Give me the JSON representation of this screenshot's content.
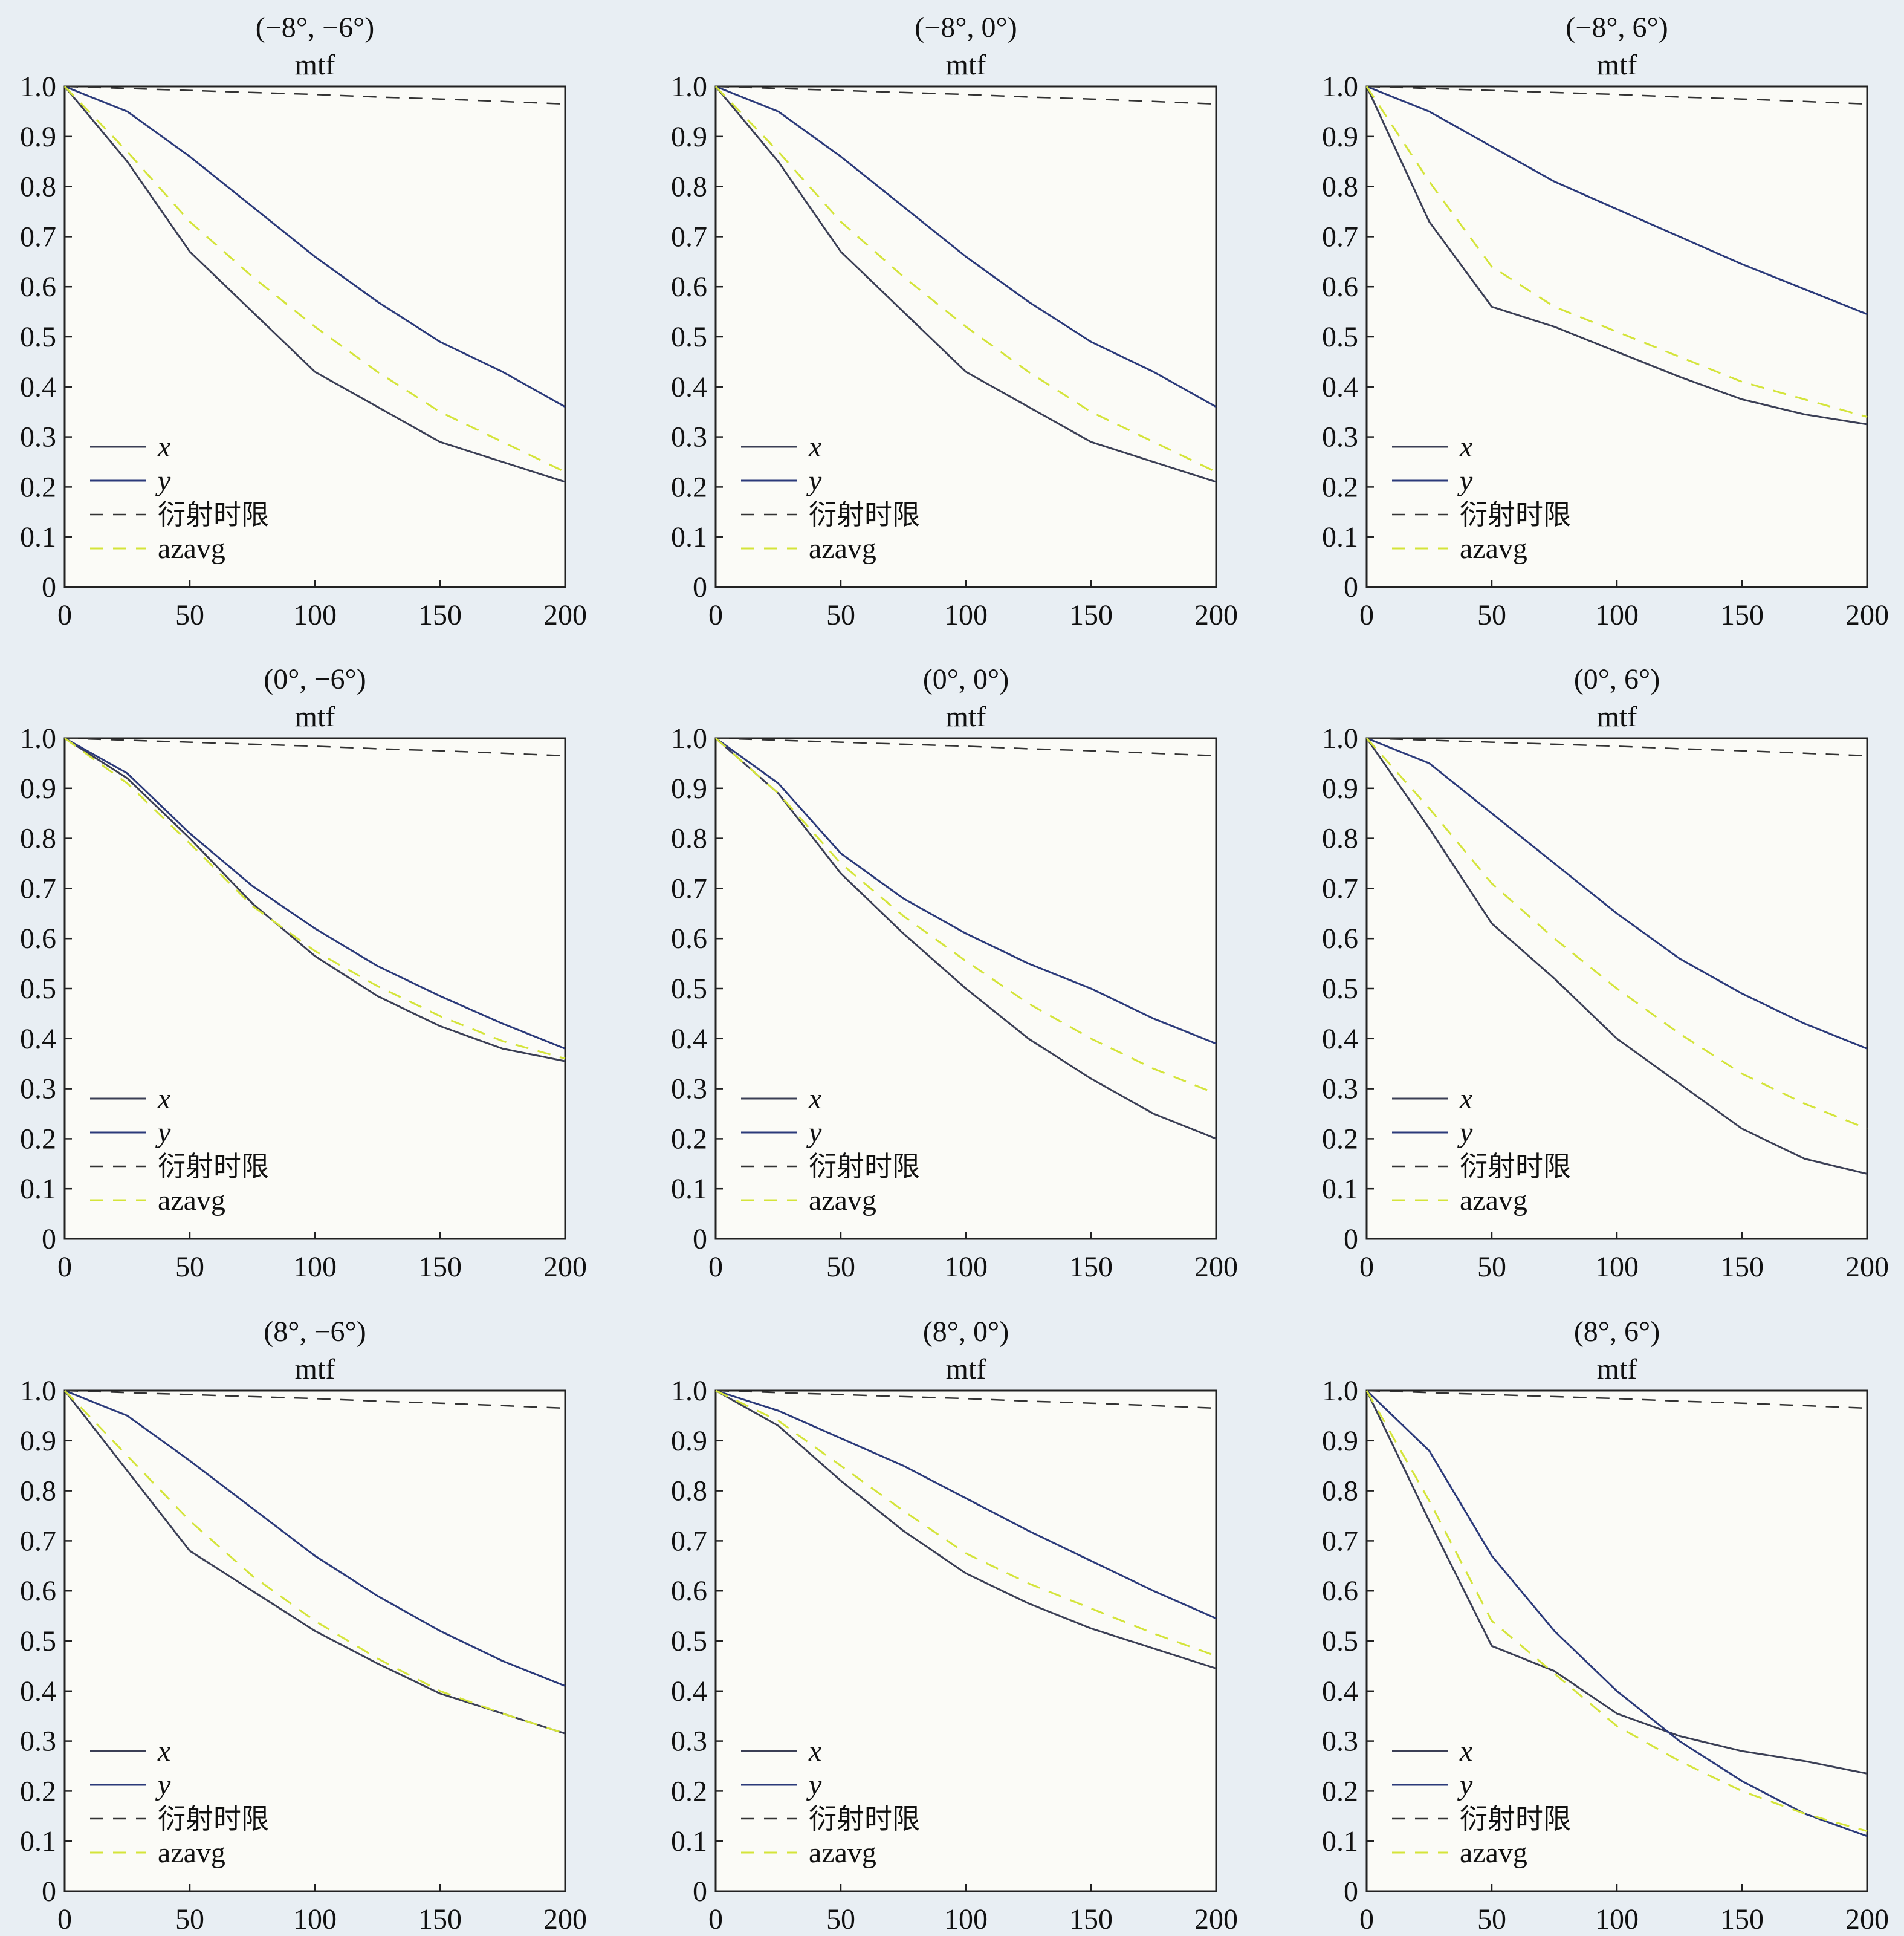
{
  "colors": {
    "background": "#e8eef3",
    "plot_background": "#fbfbf7",
    "axis": "#222222",
    "x_line": "#3b3f55",
    "y_line": "#2b3a7a",
    "diff_limit": "#333333",
    "azavg": "#d4e43a"
  },
  "chart_data": [
    {
      "type": "line",
      "title": "(−8°, −6°)",
      "subtitle": "mtf",
      "xlim": [
        0,
        200
      ],
      "ylim": [
        0,
        1.0
      ],
      "xticks": [
        "0",
        "50",
        "100",
        "150",
        "200"
      ],
      "yticks": [
        "0",
        "0.1",
        "0.2",
        "0.3",
        "0.4",
        "0.5",
        "0.6",
        "0.7",
        "0.8",
        "0.9",
        "1.0"
      ],
      "x": [
        0,
        25,
        50,
        75,
        100,
        125,
        150,
        175,
        200
      ],
      "series": [
        {
          "name": "x",
          "style": "solid",
          "values": [
            1.0,
            0.85,
            0.67,
            0.55,
            0.43,
            0.36,
            0.29,
            0.25,
            0.21
          ]
        },
        {
          "name": "y",
          "style": "solid",
          "values": [
            1.0,
            0.95,
            0.86,
            0.76,
            0.66,
            0.57,
            0.49,
            0.43,
            0.36
          ]
        },
        {
          "name": "衍射时限",
          "style": "dashed",
          "values": [
            1.0,
            0.996,
            0.992,
            0.988,
            0.984,
            0.979,
            0.975,
            0.97,
            0.965
          ]
        },
        {
          "name": "azavg",
          "style": "dashed",
          "values": [
            1.0,
            0.87,
            0.73,
            0.62,
            0.52,
            0.43,
            0.35,
            0.29,
            0.23
          ]
        }
      ],
      "legend": {
        "placement": "lower-left",
        "items": [
          "x",
          "y",
          "衍射时限",
          "azavg"
        ]
      }
    },
    {
      "type": "line",
      "title": "(−8°, 0°)",
      "subtitle": "mtf",
      "xlim": [
        0,
        200
      ],
      "ylim": [
        0,
        1.0
      ],
      "xticks": [
        "0",
        "50",
        "100",
        "150",
        "200"
      ],
      "yticks": [
        "0",
        "0.1",
        "0.2",
        "0.3",
        "0.4",
        "0.5",
        "0.6",
        "0.7",
        "0.8",
        "0.9",
        "1.0"
      ],
      "x": [
        0,
        25,
        50,
        75,
        100,
        125,
        150,
        175,
        200
      ],
      "series": [
        {
          "name": "x",
          "style": "solid",
          "values": [
            1.0,
            0.85,
            0.67,
            0.55,
            0.43,
            0.36,
            0.29,
            0.25,
            0.21
          ]
        },
        {
          "name": "y",
          "style": "solid",
          "values": [
            1.0,
            0.95,
            0.86,
            0.76,
            0.66,
            0.57,
            0.49,
            0.43,
            0.36
          ]
        },
        {
          "name": "衍射时限",
          "style": "dashed",
          "values": [
            1.0,
            0.996,
            0.992,
            0.988,
            0.984,
            0.979,
            0.975,
            0.97,
            0.965
          ]
        },
        {
          "name": "azavg",
          "style": "dashed",
          "values": [
            1.0,
            0.87,
            0.73,
            0.62,
            0.52,
            0.43,
            0.35,
            0.29,
            0.23
          ]
        }
      ],
      "legend": {
        "placement": "lower-left",
        "items": [
          "x",
          "y",
          "衍射时限",
          "azavg"
        ]
      }
    },
    {
      "type": "line",
      "title": "(−8°, 6°)",
      "subtitle": "mtf",
      "xlim": [
        0,
        200
      ],
      "ylim": [
        0,
        1.0
      ],
      "xticks": [
        "0",
        "50",
        "100",
        "150",
        "200"
      ],
      "yticks": [
        "0",
        "0.1",
        "0.2",
        "0.3",
        "0.4",
        "0.5",
        "0.6",
        "0.7",
        "0.8",
        "0.9",
        "1.0"
      ],
      "x": [
        0,
        25,
        50,
        75,
        100,
        125,
        150,
        175,
        200
      ],
      "series": [
        {
          "name": "x",
          "style": "solid",
          "values": [
            1.0,
            0.73,
            0.56,
            0.52,
            0.47,
            0.42,
            0.375,
            0.345,
            0.325
          ]
        },
        {
          "name": "y",
          "style": "solid",
          "values": [
            1.0,
            0.95,
            0.88,
            0.81,
            0.755,
            0.7,
            0.645,
            0.595,
            0.545
          ]
        },
        {
          "name": "衍射时限",
          "style": "dashed",
          "values": [
            1.0,
            0.996,
            0.992,
            0.988,
            0.984,
            0.979,
            0.975,
            0.97,
            0.965
          ]
        },
        {
          "name": "azavg",
          "style": "dashed",
          "values": [
            1.0,
            0.81,
            0.64,
            0.56,
            0.51,
            0.46,
            0.41,
            0.375,
            0.34
          ]
        }
      ],
      "legend": {
        "placement": "lower-left",
        "items": [
          "x",
          "y",
          "衍射时限",
          "azavg"
        ]
      }
    },
    {
      "type": "line",
      "title": "(0°, −6°)",
      "subtitle": "mtf",
      "xlim": [
        0,
        200
      ],
      "ylim": [
        0,
        1.0
      ],
      "xticks": [
        "0",
        "50",
        "100",
        "150",
        "200"
      ],
      "yticks": [
        "0",
        "0.1",
        "0.2",
        "0.3",
        "0.4",
        "0.5",
        "0.6",
        "0.7",
        "0.8",
        "0.9",
        "1.0"
      ],
      "x": [
        0,
        25,
        50,
        75,
        100,
        125,
        150,
        175,
        200
      ],
      "series": [
        {
          "name": "x",
          "style": "solid",
          "values": [
            1.0,
            0.92,
            0.8,
            0.67,
            0.565,
            0.485,
            0.425,
            0.38,
            0.355
          ]
        },
        {
          "name": "y",
          "style": "solid",
          "values": [
            1.0,
            0.93,
            0.81,
            0.705,
            0.62,
            0.545,
            0.485,
            0.43,
            0.38
          ]
        },
        {
          "name": "衍射时限",
          "style": "dashed",
          "values": [
            1.0,
            0.996,
            0.992,
            0.988,
            0.984,
            0.979,
            0.975,
            0.97,
            0.965
          ]
        },
        {
          "name": "azavg",
          "style": "dashed",
          "values": [
            1.0,
            0.91,
            0.79,
            0.665,
            0.575,
            0.505,
            0.445,
            0.395,
            0.36
          ]
        }
      ],
      "legend": {
        "placement": "lower-left",
        "items": [
          "x",
          "y",
          "衍射时限",
          "azavg"
        ]
      }
    },
    {
      "type": "line",
      "title": "(0°, 0°)",
      "subtitle": "mtf",
      "xlim": [
        0,
        200
      ],
      "ylim": [
        0,
        1.0
      ],
      "xticks": [
        "0",
        "50",
        "100",
        "150",
        "200"
      ],
      "yticks": [
        "0",
        "0.1",
        "0.2",
        "0.3",
        "0.4",
        "0.5",
        "0.6",
        "0.7",
        "0.8",
        "0.9",
        "1.0"
      ],
      "x": [
        0,
        25,
        50,
        75,
        100,
        125,
        150,
        175,
        200
      ],
      "series": [
        {
          "name": "x",
          "style": "solid",
          "values": [
            1.0,
            0.89,
            0.73,
            0.61,
            0.5,
            0.4,
            0.32,
            0.25,
            0.2
          ]
        },
        {
          "name": "y",
          "style": "solid",
          "values": [
            1.0,
            0.91,
            0.77,
            0.68,
            0.61,
            0.55,
            0.5,
            0.44,
            0.39
          ]
        },
        {
          "name": "衍射时限",
          "style": "dashed",
          "values": [
            1.0,
            0.996,
            0.992,
            0.988,
            0.984,
            0.979,
            0.975,
            0.97,
            0.965
          ]
        },
        {
          "name": "azavg",
          "style": "dashed",
          "values": [
            1.0,
            0.89,
            0.75,
            0.645,
            0.555,
            0.47,
            0.4,
            0.34,
            0.29
          ]
        }
      ],
      "legend": {
        "placement": "lower-left",
        "items": [
          "x",
          "y",
          "衍射时限",
          "azavg"
        ]
      }
    },
    {
      "type": "line",
      "title": "(0°, 6°)",
      "subtitle": "mtf",
      "xlim": [
        0,
        200
      ],
      "ylim": [
        0,
        1.0
      ],
      "xticks": [
        "0",
        "50",
        "100",
        "150",
        "200"
      ],
      "yticks": [
        "0",
        "0.1",
        "0.2",
        "0.3",
        "0.4",
        "0.5",
        "0.6",
        "0.7",
        "0.8",
        "0.9",
        "1.0"
      ],
      "x": [
        0,
        25,
        50,
        75,
        100,
        125,
        150,
        175,
        200
      ],
      "series": [
        {
          "name": "x",
          "style": "solid",
          "values": [
            1.0,
            0.82,
            0.63,
            0.52,
            0.4,
            0.31,
            0.22,
            0.16,
            0.13
          ]
        },
        {
          "name": "y",
          "style": "solid",
          "values": [
            1.0,
            0.95,
            0.85,
            0.75,
            0.65,
            0.56,
            0.49,
            0.43,
            0.38
          ]
        },
        {
          "name": "衍射时限",
          "style": "dashed",
          "values": [
            1.0,
            0.996,
            0.992,
            0.988,
            0.984,
            0.979,
            0.975,
            0.97,
            0.965
          ]
        },
        {
          "name": "azavg",
          "style": "dashed",
          "values": [
            1.0,
            0.86,
            0.71,
            0.6,
            0.5,
            0.41,
            0.33,
            0.27,
            0.22
          ]
        }
      ],
      "legend": {
        "placement": "lower-left",
        "items": [
          "x",
          "y",
          "衍射时限",
          "azavg"
        ]
      }
    },
    {
      "type": "line",
      "title": "(8°, −6°)",
      "subtitle": "mtf",
      "xlim": [
        0,
        200
      ],
      "ylim": [
        0,
        1.0
      ],
      "xticks": [
        "0",
        "50",
        "100",
        "150",
        "200"
      ],
      "yticks": [
        "0",
        "0.1",
        "0.2",
        "0.3",
        "0.4",
        "0.5",
        "0.6",
        "0.7",
        "0.8",
        "0.9",
        "1.0"
      ],
      "x": [
        0,
        25,
        50,
        75,
        100,
        125,
        150,
        175,
        200
      ],
      "series": [
        {
          "name": "x",
          "style": "solid",
          "values": [
            1.0,
            0.84,
            0.68,
            0.6,
            0.52,
            0.455,
            0.395,
            0.355,
            0.315
          ]
        },
        {
          "name": "y",
          "style": "solid",
          "values": [
            1.0,
            0.95,
            0.86,
            0.765,
            0.67,
            0.59,
            0.52,
            0.46,
            0.41
          ]
        },
        {
          "name": "衍射时限",
          "style": "dashed",
          "values": [
            1.0,
            0.996,
            0.992,
            0.988,
            0.984,
            0.979,
            0.975,
            0.97,
            0.965
          ]
        },
        {
          "name": "azavg",
          "style": "dashed",
          "values": [
            1.0,
            0.87,
            0.74,
            0.63,
            0.54,
            0.465,
            0.4,
            0.355,
            0.315
          ]
        }
      ],
      "legend": {
        "placement": "lower-left",
        "items": [
          "x",
          "y",
          "衍射时限",
          "azavg"
        ]
      }
    },
    {
      "type": "line",
      "title": "(8°, 0°)",
      "subtitle": "mtf",
      "xlim": [
        0,
        200
      ],
      "ylim": [
        0,
        1.0
      ],
      "xticks": [
        "0",
        "50",
        "100",
        "150",
        "200"
      ],
      "yticks": [
        "0",
        "0.1",
        "0.2",
        "0.3",
        "0.4",
        "0.5",
        "0.6",
        "0.7",
        "0.8",
        "0.9",
        "1.0"
      ],
      "x": [
        0,
        25,
        50,
        75,
        100,
        125,
        150,
        175,
        200
      ],
      "series": [
        {
          "name": "x",
          "style": "solid",
          "values": [
            1.0,
            0.93,
            0.82,
            0.72,
            0.635,
            0.575,
            0.525,
            0.485,
            0.445
          ]
        },
        {
          "name": "y",
          "style": "solid",
          "values": [
            1.0,
            0.96,
            0.905,
            0.85,
            0.785,
            0.72,
            0.66,
            0.6,
            0.545
          ]
        },
        {
          "name": "衍射时限",
          "style": "dashed",
          "values": [
            1.0,
            0.996,
            0.992,
            0.988,
            0.984,
            0.979,
            0.975,
            0.97,
            0.965
          ]
        },
        {
          "name": "azavg",
          "style": "dashed",
          "values": [
            1.0,
            0.94,
            0.85,
            0.76,
            0.675,
            0.615,
            0.565,
            0.515,
            0.47
          ]
        }
      ],
      "legend": {
        "placement": "lower-left",
        "items": [
          "x",
          "y",
          "衍射时限",
          "azavg"
        ]
      }
    },
    {
      "type": "line",
      "title": "(8°, 6°)",
      "subtitle": "mtf",
      "xlim": [
        0,
        200
      ],
      "ylim": [
        0,
        1.0
      ],
      "xticks": [
        "0",
        "50",
        "100",
        "150",
        "200"
      ],
      "yticks": [
        "0",
        "0.1",
        "0.2",
        "0.3",
        "0.4",
        "0.5",
        "0.6",
        "0.7",
        "0.8",
        "0.9",
        "1.0"
      ],
      "x": [
        0,
        25,
        50,
        75,
        100,
        125,
        150,
        175,
        200
      ],
      "series": [
        {
          "name": "x",
          "style": "solid",
          "values": [
            1.0,
            0.74,
            0.49,
            0.44,
            0.355,
            0.31,
            0.28,
            0.26,
            0.235
          ]
        },
        {
          "name": "y",
          "style": "solid",
          "values": [
            1.0,
            0.88,
            0.67,
            0.52,
            0.4,
            0.3,
            0.22,
            0.155,
            0.11
          ]
        },
        {
          "name": "衍射时限",
          "style": "dashed",
          "values": [
            1.0,
            0.996,
            0.992,
            0.988,
            0.984,
            0.979,
            0.975,
            0.97,
            0.965
          ]
        },
        {
          "name": "azavg",
          "style": "dashed",
          "values": [
            1.0,
            0.78,
            0.54,
            0.435,
            0.33,
            0.26,
            0.2,
            0.155,
            0.12
          ]
        }
      ],
      "legend": {
        "placement": "lower-left",
        "items": [
          "x",
          "y",
          "衍射时限",
          "azavg"
        ]
      }
    }
  ]
}
